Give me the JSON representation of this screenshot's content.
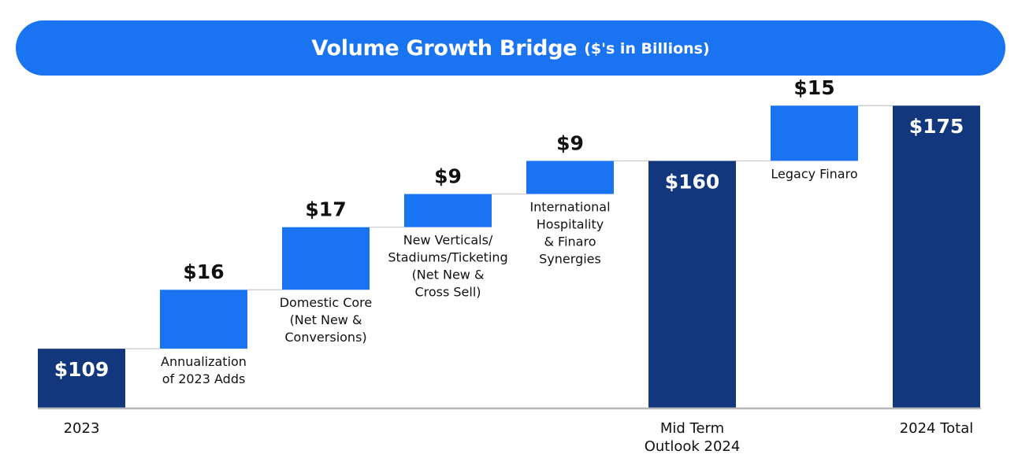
{
  "title": {
    "main": "Volume Growth Bridge",
    "sub": "($'s in Billions)"
  },
  "colors": {
    "banner": "#1a73f0",
    "increment": "#1a73f0",
    "total": "#12377d",
    "axis": "#b8b8b8",
    "connector": "#c8c8c8",
    "text": "#111111"
  },
  "chart_data": {
    "type": "waterfall",
    "title": "Volume Growth Bridge ($'s in Billions)",
    "xlabel": "",
    "ylabel": "",
    "ylim": [
      80,
      175
    ],
    "categories": [
      "2023",
      "Annualization of 2023 Adds",
      "Domestic Core (Net New & Conversions)",
      "New Verticals/ Stadiums/Ticketing (Net New & Cross Sell)",
      "International Hospitality & Finaro Synergies",
      "Mid Term Outlook 2024",
      "Legacy Finaro",
      "2024 Total"
    ],
    "bars": [
      {
        "kind": "total",
        "value": 109,
        "label": "$109",
        "name_lines": [],
        "axis_lines": [
          "2023"
        ]
      },
      {
        "kind": "increment",
        "value": 16,
        "label": "$16",
        "name_lines": [
          "Annualization",
          "of 2023 Adds"
        ],
        "axis_lines": []
      },
      {
        "kind": "increment",
        "value": 17,
        "label": "$17",
        "name_lines": [
          "Domestic Core",
          "(Net New &",
          "Conversions)"
        ],
        "axis_lines": []
      },
      {
        "kind": "increment",
        "value": 9,
        "label": "$9",
        "name_lines": [
          "New Verticals/",
          "Stadiums/Ticketing",
          "(Net New &",
          "Cross Sell)"
        ],
        "axis_lines": []
      },
      {
        "kind": "increment",
        "value": 9,
        "label": "$9",
        "name_lines": [
          "International",
          "Hospitality",
          "& Finaro",
          "Synergies"
        ],
        "axis_lines": []
      },
      {
        "kind": "total",
        "value": 160,
        "label": "$160",
        "name_lines": [],
        "axis_lines": [
          "Mid Term",
          "Outlook 2024"
        ]
      },
      {
        "kind": "increment",
        "value": 15,
        "label": "$15",
        "name_lines": [
          "Legacy Finaro"
        ],
        "axis_lines": []
      },
      {
        "kind": "total",
        "value": 175,
        "label": "$175",
        "name_lines": [],
        "axis_lines": [
          "2024 Total"
        ]
      }
    ]
  }
}
